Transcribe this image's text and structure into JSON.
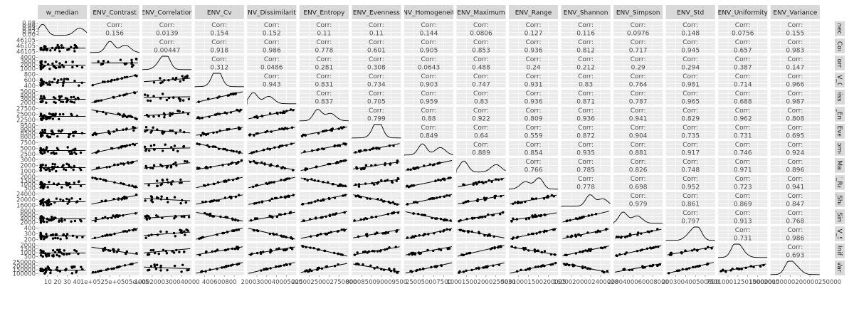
{
  "chart_data": {
    "type": "scatter-matrix",
    "variables": [
      "w_median",
      "ENV_Contrast",
      "ENV_Correlation",
      "ENV_Cv",
      "ENV_Dissimilarity",
      "ENV_Entropy",
      "ENV_Evenness",
      "ENV_Homogeneity",
      "ENV_Maximum",
      "ENV_Range",
      "ENV_Shannon",
      "ENV_Simpson",
      "ENV_Std",
      "ENV_Uniformity",
      "ENV_Variance"
    ],
    "column_labels": [
      "w_median",
      "ENV_Contrast",
      "ENV_Correlation",
      "ENV_Cv",
      "ENV_Dissimilarity",
      "ENV_Entropy",
      "ENV_Evenness",
      "NV_Homogeneit",
      "ENV_Maximum",
      "ENV_Range",
      "ENV_Shannon",
      "ENV_Simpson",
      "ENV_Std",
      "ENV_Uniformity",
      "ENV_Variance"
    ],
    "row_labels": [
      "medi",
      "_Con",
      "Corre",
      "IV_C",
      "Dissir",
      "/_Ent",
      "_Ever",
      "Iomo",
      "_Max",
      "/_Ra",
      "_Sha",
      "_Sim",
      "IV_S",
      "Unifc",
      "Vari"
    ],
    "corr_prefix": "Corr:",
    "correlations": [
      [
        null,
        "0.156",
        "0.0139",
        "0.154",
        "0.152",
        "0.11",
        "0.11",
        "0.144",
        "0.0806",
        "0.127",
        "0.116",
        "0.0976",
        "0.148",
        "0.0756",
        "0.155"
      ],
      [
        null,
        null,
        "0.00447",
        "0.918",
        "0.986",
        "0.778",
        "0.601",
        "0.905",
        "0.853",
        "0.936",
        "0.812",
        "0.717",
        "0.945",
        "0.657",
        "0.983"
      ],
      [
        null,
        null,
        null,
        "0.312",
        "0.0486",
        "0.281",
        "0.308",
        "0.0643",
        "0.488",
        "0.24",
        "0.212",
        "0.29",
        "0.294",
        "0.387",
        "0.147"
      ],
      [
        null,
        null,
        null,
        null,
        "0.943",
        "0.831",
        "0.734",
        "0.903",
        "0.747",
        "0.931",
        "0.83",
        "0.764",
        "0.981",
        "0.714",
        "0.966"
      ],
      [
        null,
        null,
        null,
        null,
        null,
        "0.837",
        "0.705",
        "0.959",
        "0.83",
        "0.936",
        "0.871",
        "0.787",
        "0.965",
        "0.688",
        "0.987"
      ],
      [
        null,
        null,
        null,
        null,
        null,
        null,
        "0.799",
        "0.88",
        "0.922",
        "0.809",
        "0.936",
        "0.941",
        "0.829",
        "0.962",
        "0.808"
      ],
      [
        null,
        null,
        null,
        null,
        null,
        null,
        null,
        "0.849",
        "0.64",
        "0.559",
        "0.872",
        "0.904",
        "0.735",
        "0.731",
        "0.695"
      ],
      [
        null,
        null,
        null,
        null,
        null,
        null,
        null,
        null,
        "0.889",
        "0.854",
        "0.935",
        "0.881",
        "0.917",
        "0.746",
        "0.924"
      ],
      [
        null,
        null,
        null,
        null,
        null,
        null,
        null,
        null,
        null,
        "0.766",
        "0.785",
        "0.826",
        "0.748",
        "0.971",
        "0.896"
      ],
      [
        null,
        null,
        null,
        null,
        null,
        null,
        null,
        null,
        null,
        null,
        "0.778",
        "0.698",
        "0.952",
        "0.723",
        "0.941"
      ],
      [
        null,
        null,
        null,
        null,
        null,
        null,
        null,
        null,
        null,
        null,
        null,
        "0.979",
        "0.861",
        "0.869",
        "0.847"
      ],
      [
        null,
        null,
        null,
        null,
        null,
        null,
        null,
        null,
        null,
        null,
        null,
        null,
        "0.797",
        "0.913",
        "0.768"
      ],
      [
        null,
        null,
        null,
        null,
        null,
        null,
        null,
        null,
        null,
        null,
        null,
        null,
        null,
        "0.731",
        "0.986"
      ],
      [
        null,
        null,
        null,
        null,
        null,
        null,
        null,
        null,
        null,
        null,
        null,
        null,
        null,
        null,
        "0.693"
      ],
      [
        null,
        null,
        null,
        null,
        null,
        null,
        null,
        null,
        null,
        null,
        null,
        null,
        null,
        null,
        null
      ]
    ],
    "y_tick_labels": [
      [
        "0.08",
        "0.06",
        "0.04",
        "0.02",
        "0.00"
      ],
      [
        "46105",
        "46105",
        "46105"
      ],
      [
        "4000",
        "3000",
        "2000",
        "1000"
      ],
      [
        "800",
        "600",
        "400"
      ],
      [
        "5000",
        "4000",
        "3000",
        "2000"
      ],
      [
        "27500",
        "25000",
        "22500"
      ],
      [
        "9500",
        "9000",
        "8500",
        "8000"
      ],
      [
        "7500",
        "5000",
        "2500"
      ],
      [
        "3000",
        "2000",
        "1000"
      ],
      [
        "2000",
        "1500",
        "1000",
        "500"
      ],
      [
        "24000",
        "20000",
        "16000"
      ],
      [
        "8000",
        "6000",
        "4000",
        "2000"
      ],
      [
        "400",
        "300",
        "200"
      ],
      [
        "2000",
        "1500",
        "1000",
        "500"
      ],
      [
        "250000",
        "200000",
        "150000",
        "100000"
      ]
    ],
    "x_tick_labels": [
      "10 20 30 40",
      "1e+0525e+0505e+05",
      "10002000300040000",
      "400600800",
      "2000300040005000",
      "22500250002750000",
      "8000850090009500",
      "250050007500",
      "100015002000250030",
      "50010001500200025",
      "16000200002400028",
      "2000400060008000",
      "200300400500600",
      "7501000125015002000",
      "100000150000200000250000"
    ],
    "grid": true,
    "panel_background": "#ebebeb",
    "strip_background": "#d9d9d9",
    "point_color": "#000000"
  }
}
